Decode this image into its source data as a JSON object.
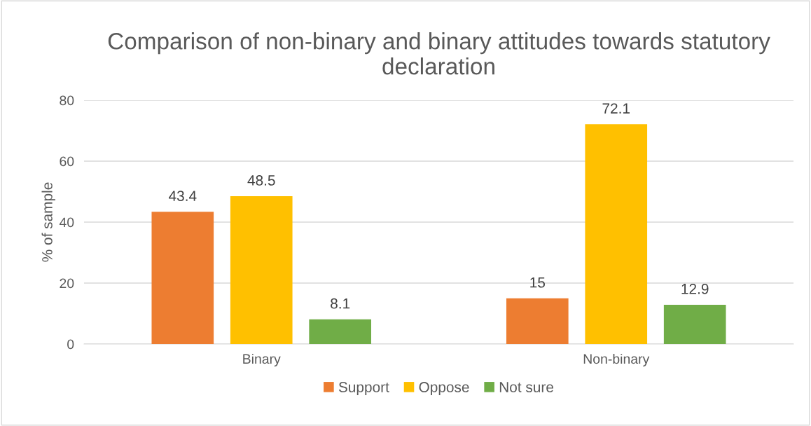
{
  "chart_data": {
    "type": "bar",
    "title": "Comparison of non-binary and binary attitudes towards statutory declaration",
    "ylabel": "% of sample",
    "categories": [
      "Binary",
      "Non-binary"
    ],
    "series": [
      {
        "name": "Support",
        "color": "#ed7d31",
        "values": [
          43.4,
          15
        ]
      },
      {
        "name": "Oppose",
        "color": "#ffc000",
        "values": [
          48.5,
          72.1
        ]
      },
      {
        "name": "Not sure",
        "color": "#70ad47",
        "values": [
          8.1,
          12.9
        ]
      }
    ],
    "ylim": [
      0,
      80
    ],
    "yticks": [
      0,
      20,
      40,
      60,
      80
    ],
    "grid": "y",
    "legend": "bottom",
    "data_labels": true
  }
}
